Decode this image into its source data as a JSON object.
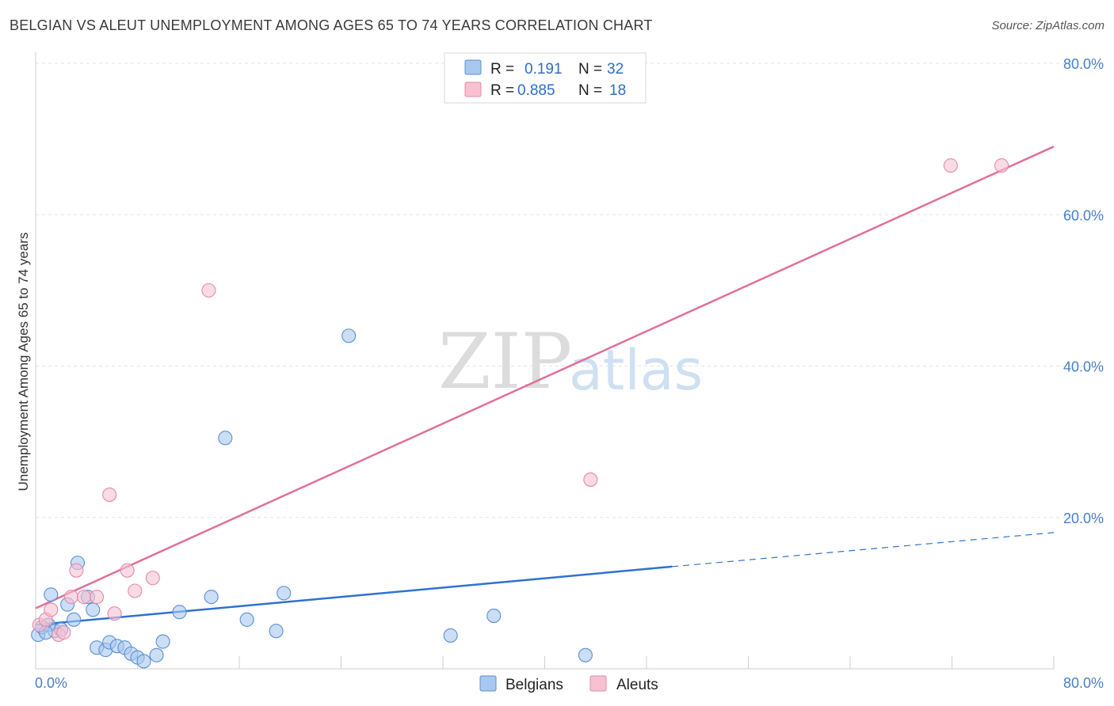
{
  "title": "BELGIAN VS ALEUT UNEMPLOYMENT AMONG AGES 65 TO 74 YEARS CORRELATION CHART",
  "source": "Source: ZipAtlas.com",
  "watermark": {
    "zip": "ZIP",
    "atlas": "atlas"
  },
  "colors": {
    "blue_fill": "#a9c8ef",
    "blue_stroke": "#5b8fd6",
    "blue_line": "#2f72cf",
    "pink_fill": "#f7c1d2",
    "pink_stroke": "#e38aa8",
    "pink_line": "#e0709a",
    "grid": "#e3e3e3",
    "tick": "#4a7fc8"
  },
  "legend": {
    "rows": [
      {
        "r_label": "R =",
        "r_value": "0.191",
        "n_label": "N =",
        "n_value": "32"
      },
      {
        "r_label": "R =",
        "r_value": "0.885",
        "n_label": "N =",
        "n_value": "18"
      }
    ]
  },
  "bottom_legend": {
    "belgians": "Belgians",
    "aleuts": "Aleuts"
  },
  "chart_data": {
    "type": "scatter",
    "title": "BELGIAN VS ALEUT UNEMPLOYMENT AMONG AGES 65 TO 74 YEARS CORRELATION CHART",
    "xlabel": "",
    "ylabel": "Unemployment Among Ages 65 to 74 years",
    "xlim": [
      0,
      80
    ],
    "ylim": [
      0,
      80
    ],
    "x_tick_labels": [
      "0.0%",
      "80.0%"
    ],
    "y_tick_labels": [
      "20.0%",
      "40.0%",
      "60.0%",
      "80.0%"
    ],
    "y_ticks": [
      20,
      40,
      60,
      80
    ],
    "grid": true,
    "series": [
      {
        "name": "Belgians",
        "r": 0.191,
        "n": 32,
        "points": [
          [
            0.2,
            4.5
          ],
          [
            0.5,
            5.5
          ],
          [
            1.0,
            5.8
          ],
          [
            1.5,
            5.0
          ],
          [
            2.0,
            5.2
          ],
          [
            3.0,
            6.5
          ],
          [
            2.5,
            8.5
          ],
          [
            3.3,
            14.0
          ],
          [
            4.1,
            9.5
          ],
          [
            4.5,
            7.8
          ],
          [
            4.8,
            2.8
          ],
          [
            5.5,
            2.5
          ],
          [
            5.8,
            3.5
          ],
          [
            6.4,
            3.0
          ],
          [
            7.0,
            2.8
          ],
          [
            7.5,
            2.0
          ],
          [
            8.0,
            1.5
          ],
          [
            8.5,
            1.0
          ],
          [
            9.5,
            1.8
          ],
          [
            10.0,
            3.6
          ],
          [
            11.3,
            7.5
          ],
          [
            13.8,
            9.5
          ],
          [
            14.9,
            30.5
          ],
          [
            16.6,
            6.5
          ],
          [
            18.9,
            5.0
          ],
          [
            19.5,
            10.0
          ],
          [
            24.6,
            44.0
          ],
          [
            32.6,
            4.4
          ],
          [
            36.0,
            7.0
          ],
          [
            43.2,
            1.8
          ],
          [
            1.2,
            9.8
          ],
          [
            0.8,
            4.8
          ]
        ],
        "trend": {
          "x0": 0,
          "y0": 5.8,
          "x1": 50,
          "y1": 13.5,
          "dash_to_x": 80,
          "dash_to_y": 18.0
        }
      },
      {
        "name": "Aleuts",
        "r": 0.885,
        "n": 18,
        "points": [
          [
            0.3,
            5.8
          ],
          [
            0.8,
            6.5
          ],
          [
            1.2,
            7.8
          ],
          [
            1.8,
            4.5
          ],
          [
            2.2,
            4.8
          ],
          [
            2.8,
            9.5
          ],
          [
            3.2,
            13.0
          ],
          [
            3.8,
            9.5
          ],
          [
            4.8,
            9.5
          ],
          [
            5.8,
            23.0
          ],
          [
            6.2,
            7.3
          ],
          [
            7.2,
            13.0
          ],
          [
            7.8,
            10.3
          ],
          [
            9.2,
            12.0
          ],
          [
            13.6,
            50.0
          ],
          [
            43.6,
            25.0
          ],
          [
            71.9,
            66.5
          ],
          [
            75.9,
            66.5
          ]
        ],
        "trend": {
          "x0": 0,
          "y0": 8.0,
          "x1": 80,
          "y1": 69.0
        }
      }
    ]
  }
}
